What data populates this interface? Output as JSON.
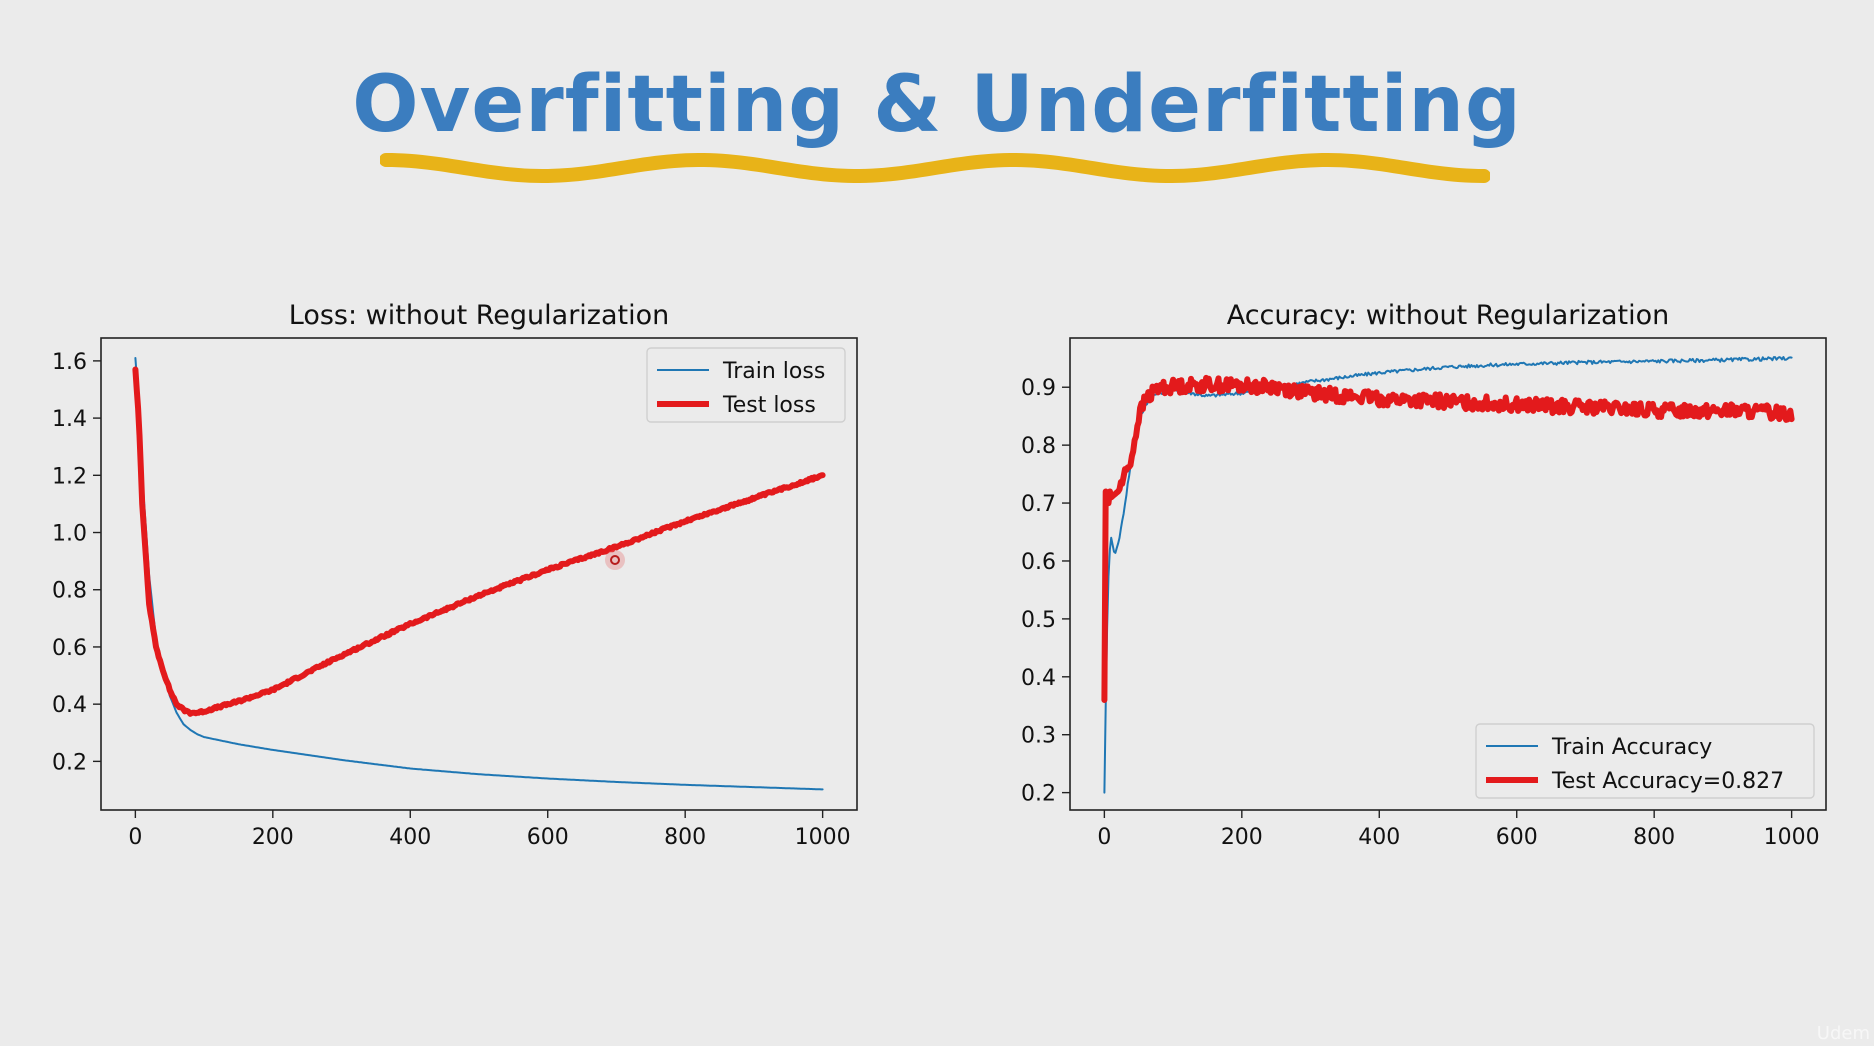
{
  "slide": {
    "title": "Overfitting & Underfitting",
    "title_color": "#3b7dbf",
    "underline_color": "#e8b318"
  },
  "watermark": "Udem",
  "chart_data": [
    {
      "type": "line",
      "title": "Loss: without Regularization",
      "xlabel": "",
      "ylabel": "",
      "xlim": [
        -50,
        1050
      ],
      "ylim": [
        0.03,
        1.68
      ],
      "xticks": [
        0,
        200,
        400,
        600,
        800,
        1000
      ],
      "yticks": [
        0.2,
        0.4,
        0.6,
        0.8,
        1.0,
        1.2,
        1.4,
        1.6
      ],
      "ytick_format": 1,
      "grid": false,
      "legend": "top-right",
      "series": [
        {
          "name": "Train loss",
          "color": "#1f77b4",
          "width": 2,
          "noise": 0,
          "x": [
            0,
            5,
            10,
            20,
            30,
            40,
            50,
            60,
            70,
            80,
            90,
            100,
            150,
            200,
            300,
            400,
            500,
            600,
            700,
            800,
            900,
            1000
          ],
          "y": [
            1.61,
            1.45,
            1.2,
            0.85,
            0.63,
            0.52,
            0.43,
            0.37,
            0.33,
            0.31,
            0.295,
            0.285,
            0.26,
            0.24,
            0.205,
            0.175,
            0.155,
            0.14,
            0.128,
            0.118,
            0.11,
            0.102
          ]
        },
        {
          "name": "Test loss",
          "color": "#e31a1c",
          "width": 6,
          "noise": 0.004,
          "x": [
            0,
            5,
            10,
            20,
            30,
            40,
            50,
            60,
            70,
            80,
            90,
            100,
            150,
            200,
            250,
            300,
            400,
            500,
            600,
            700,
            800,
            900,
            1000
          ],
          "y": [
            1.57,
            1.4,
            1.1,
            0.75,
            0.6,
            0.52,
            0.45,
            0.4,
            0.38,
            0.37,
            0.37,
            0.375,
            0.41,
            0.45,
            0.51,
            0.57,
            0.68,
            0.78,
            0.87,
            0.95,
            1.04,
            1.12,
            1.2
          ]
        }
      ]
    },
    {
      "type": "line",
      "title": "Accuracy: without Regularization",
      "xlabel": "",
      "ylabel": "",
      "xlim": [
        -50,
        1050
      ],
      "ylim": [
        0.17,
        0.985
      ],
      "xticks": [
        0,
        200,
        400,
        600,
        800,
        1000
      ],
      "yticks": [
        0.2,
        0.3,
        0.4,
        0.5,
        0.6,
        0.7,
        0.8,
        0.9
      ],
      "ytick_format": 1,
      "grid": false,
      "legend": "bottom-right",
      "series": [
        {
          "name": "Train Accuracy",
          "color": "#1f77b4",
          "width": 2,
          "noise": 0.003,
          "x": [
            0,
            2,
            5,
            8,
            10,
            15,
            20,
            25,
            30,
            40,
            50,
            60,
            70,
            80,
            100,
            150,
            200,
            250,
            300,
            400,
            500,
            600,
            700,
            800,
            900,
            1000
          ],
          "y": [
            0.2,
            0.35,
            0.55,
            0.62,
            0.64,
            0.61,
            0.63,
            0.66,
            0.7,
            0.78,
            0.84,
            0.87,
            0.885,
            0.89,
            0.895,
            0.885,
            0.89,
            0.9,
            0.91,
            0.925,
            0.935,
            0.94,
            0.943,
            0.945,
            0.947,
            0.95
          ]
        },
        {
          "name": "Test Accuracy=0.827",
          "color": "#e31a1c",
          "width": 6,
          "noise": 0.012,
          "x": [
            0,
            1,
            2,
            4,
            6,
            8,
            10,
            20,
            30,
            40,
            50,
            60,
            70,
            80,
            150,
            250,
            300,
            400,
            500,
            600,
            700,
            800,
            900,
            1000
          ],
          "y": [
            0.36,
            0.73,
            0.72,
            0.71,
            0.7,
            0.72,
            0.71,
            0.72,
            0.75,
            0.78,
            0.85,
            0.88,
            0.89,
            0.9,
            0.905,
            0.9,
            0.89,
            0.88,
            0.875,
            0.87,
            0.865,
            0.86,
            0.86,
            0.855
          ]
        }
      ]
    }
  ]
}
